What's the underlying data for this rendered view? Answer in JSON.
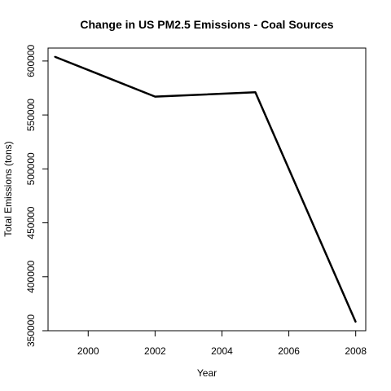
{
  "chart_data": {
    "type": "line",
    "title": "Change in US PM2.5 Emissions - Coal Sources",
    "xlabel": "Year",
    "ylabel": "Total Emissions (tons)",
    "x": [
      1999,
      2002,
      2005,
      2008
    ],
    "series": [
      {
        "values": [
          604000,
          567000,
          571000,
          358000
        ]
      }
    ],
    "xlim": [
      1998.8,
      2008.3
    ],
    "ylim": [
      350000,
      612000
    ],
    "xticks": [
      2000,
      2002,
      2004,
      2006,
      2008
    ],
    "xtick_labels": [
      "2000",
      "2002",
      "2004",
      "2006",
      "2008"
    ],
    "yticks": [
      350000,
      400000,
      450000,
      500000,
      550000,
      600000
    ],
    "ytick_labels": [
      "350000",
      "400000",
      "450000",
      "500000",
      "550000",
      "600000"
    ],
    "line_color": "#000000",
    "grid": false,
    "legend": "none"
  }
}
